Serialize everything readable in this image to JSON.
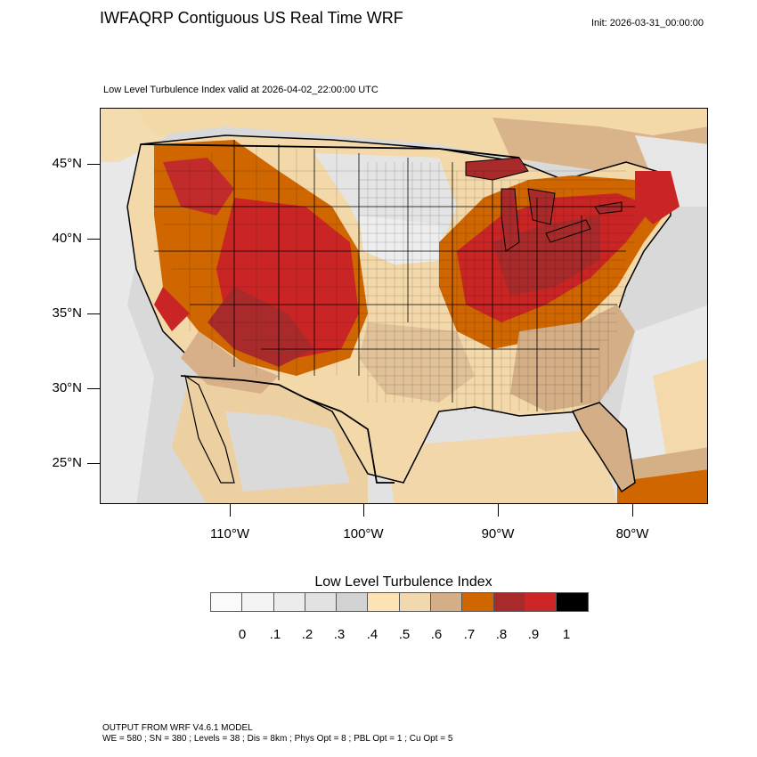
{
  "header": {
    "title": "IWFAQRP Contiguous US Real Time WRF",
    "init": "Init: 2026-03-31_00:00:00",
    "subtitle": "Low Level Turbulence Index valid at 2026-04-02_22:00:00 UTC"
  },
  "map": {
    "lat_labels": [
      "45°N",
      "40°N",
      "35°N",
      "30°N",
      "25°N"
    ],
    "lon_labels": [
      "110°W",
      "100°W",
      "90°W",
      "80°W"
    ],
    "colors": {
      "ocean_gray": "#d2d2d2",
      "light_tan": "#fde2b4",
      "tan": "#ecd0a2",
      "brown": "#d4ae86",
      "orange": "#cf6600",
      "dark_red": "#a82a2a",
      "red": "#ce2626",
      "border": "#000000"
    }
  },
  "colorbar": {
    "title": "Low Level Turbulence Index",
    "colors": [
      "#fafafa",
      "#f4f4f4",
      "#ececec",
      "#e2e2e2",
      "#d2d2d2",
      "#fde2b4",
      "#f1d8ae",
      "#d4ae86",
      "#cf6600",
      "#a82a2a",
      "#ce2626",
      "#000000"
    ],
    "labels": [
      "0",
      ".1",
      ".2",
      ".3",
      ".4",
      ".5",
      ".6",
      ".7",
      ".8",
      ".9",
      "1"
    ]
  },
  "footer": {
    "line1": "OUTPUT FROM WRF V4.6.1 MODEL",
    "line2": "WE = 580 ; SN = 380 ; Levels = 38 ; Dis = 8km ; Phys Opt = 8 ; PBL Opt = 1 ; Cu Opt = 5"
  }
}
